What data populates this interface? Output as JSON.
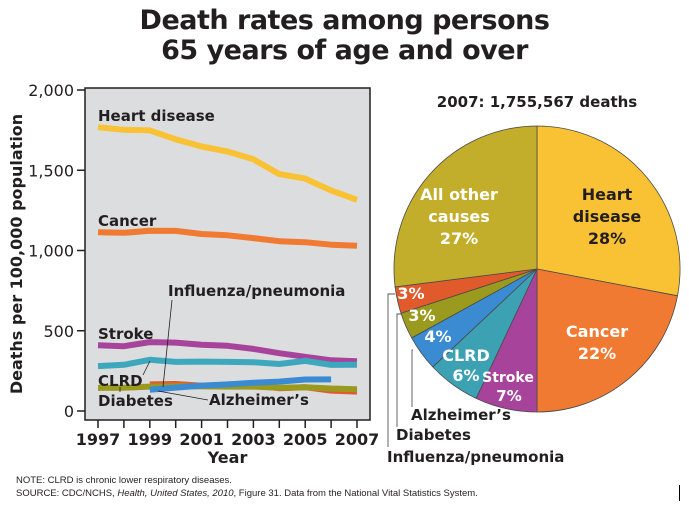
{
  "title": {
    "line1": "Death rates among persons",
    "line2": "65 years of age and over"
  },
  "chart_data": [
    {
      "type": "line",
      "title": "",
      "xlabel": "Year",
      "ylabel": "Deaths per 100,000 population",
      "x": [
        1997,
        1998,
        1999,
        2000,
        2001,
        2002,
        2003,
        2004,
        2005,
        2006,
        2007
      ],
      "xticks": [
        "1997",
        "1999",
        "2001",
        "2003",
        "2005",
        "2007"
      ],
      "yticks": [
        "0",
        "500",
        "1,000",
        "1,500",
        "2,000"
      ],
      "ytick_values": [
        0,
        500,
        1000,
        1500,
        2000
      ],
      "xlim": [
        1997,
        2007
      ],
      "ylim": [
        0,
        2000
      ],
      "grid": false,
      "background": "#dcdddf",
      "series": [
        {
          "name": "Heart disease",
          "label": "Heart disease",
          "color": "#f9c235",
          "values": [
            1768,
            1752,
            1748,
            1693,
            1648,
            1617,
            1568,
            1476,
            1448,
            1374,
            1316
          ]
        },
        {
          "name": "Cancer",
          "label": "Cancer",
          "color": "#f07a31",
          "values": [
            1114,
            1110,
            1123,
            1122,
            1103,
            1095,
            1077,
            1058,
            1052,
            1036,
            1029
          ]
        },
        {
          "name": "Stroke",
          "label": "Stroke",
          "color": "#a8439b",
          "values": [
            410,
            404,
            429,
            426,
            413,
            406,
            387,
            360,
            338,
            316,
            310
          ]
        },
        {
          "name": "CLRD",
          "label": "CLRD",
          "color": "#3da8bd",
          "values": [
            280,
            288,
            319,
            306,
            308,
            306,
            304,
            293,
            312,
            287,
            288
          ]
        },
        {
          "name": "Influenza/pneumonia",
          "label": "Influenza/pneumonia",
          "color": "#e05a2b",
          "values": [
            null,
            null,
            166,
            168,
            157,
            160,
            158,
            142,
            148,
            127,
            121
          ]
        },
        {
          "name": "Diabetes",
          "label": "Diabetes",
          "color": "#9a9a1e",
          "values": [
            144,
            145,
            152,
            154,
            153,
            152,
            152,
            145,
            148,
            140,
            136
          ]
        },
        {
          "name": "Alzheimer's",
          "label": "Alzheimer’s",
          "color": "#3a8bd1",
          "values": [
            null,
            null,
            132,
            146,
            158,
            166,
            176,
            183,
            196,
            197,
            null
          ]
        }
      ]
    },
    {
      "type": "pie",
      "title": "2007: 1,755,567 deaths",
      "slices": [
        {
          "name": "Heart disease",
          "label_line1": "Heart",
          "label_line2": "disease",
          "percent_label": "28%",
          "value": 28,
          "color": "#f9c235",
          "text_color": "#231f20"
        },
        {
          "name": "Cancer",
          "label_line1": "Cancer",
          "label_line2": "",
          "percent_label": "22%",
          "value": 22,
          "color": "#f07a31",
          "text_color": "#ffffff"
        },
        {
          "name": "Stroke",
          "label_line1": "Stroke",
          "label_line2": "",
          "percent_label": "7%",
          "value": 7,
          "color": "#a8439b",
          "text_color": "#ffffff"
        },
        {
          "name": "CLRD",
          "label_line1": "CLRD",
          "label_line2": "",
          "percent_label": "6%",
          "value": 6,
          "color": "#3da1b4",
          "text_color": "#ffffff"
        },
        {
          "name": "Alzheimer's",
          "label_line1": "",
          "label_line2": "",
          "percent_label": "4%",
          "value": 4,
          "color": "#3a8bd1",
          "text_color": "#ffffff"
        },
        {
          "name": "Diabetes",
          "label_line1": "",
          "label_line2": "",
          "percent_label": "3%",
          "value": 3,
          "color": "#9a9a1e",
          "text_color": "#ffffff"
        },
        {
          "name": "Influenza/pneumonia",
          "label_line1": "",
          "label_line2": "",
          "percent_label": "3%",
          "value": 3,
          "color": "#e05a2b",
          "text_color": "#ffffff"
        },
        {
          "name": "All other causes",
          "label_line1": "All other",
          "label_line2": "causes",
          "percent_label": "27%",
          "value": 27,
          "color": "#c2ae2a",
          "text_color": "#ffffff"
        }
      ],
      "callouts": [
        "Alzheimer’s",
        "Diabetes",
        "Influenza/pneumonia"
      ]
    }
  ],
  "footnote": {
    "note": "NOTE: CLRD is chronic lower respiratory diseases.",
    "source_prefix": "SOURCE: CDC/NCHS, ",
    "source_italic": "Health, United States, 2010",
    "source_suffix": ", Figure 31. Data from the National Vital Statistics System."
  }
}
